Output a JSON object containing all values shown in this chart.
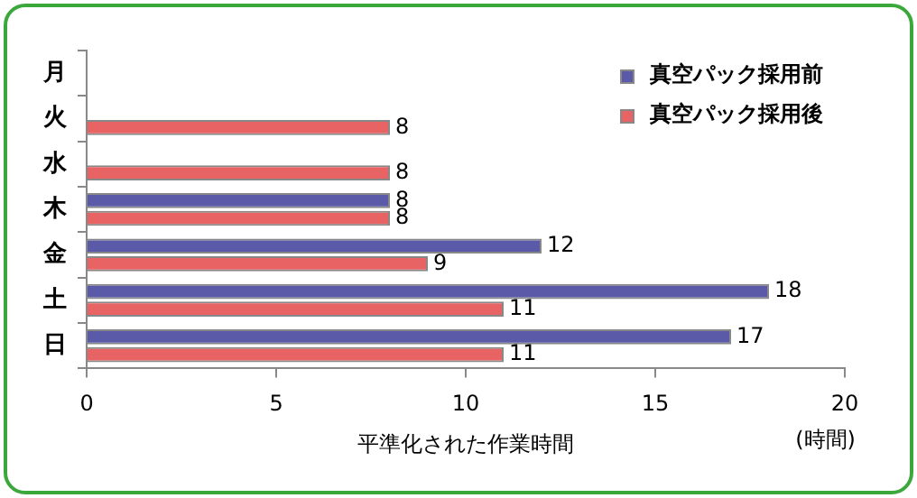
{
  "chart_data": {
    "type": "bar",
    "orientation": "horizontal",
    "categories": [
      "月",
      "火",
      "水",
      "木",
      "金",
      "土",
      "日"
    ],
    "series": [
      {
        "name": "真空パック採用前",
        "color": "#5a5aa8",
        "values": [
          null,
          null,
          null,
          8,
          12,
          18,
          17
        ]
      },
      {
        "name": "真空パック採用後",
        "color": "#e86464",
        "values": [
          null,
          8,
          8,
          8,
          9,
          11,
          11
        ]
      }
    ],
    "xlabel": "平準化された作業時間",
    "annotations": [
      "(時間)"
    ],
    "xlim": [
      0,
      20
    ],
    "xticks": [
      0,
      5,
      10,
      15,
      20
    ],
    "grid": false,
    "legend": "top right",
    "data_labels": true
  }
}
